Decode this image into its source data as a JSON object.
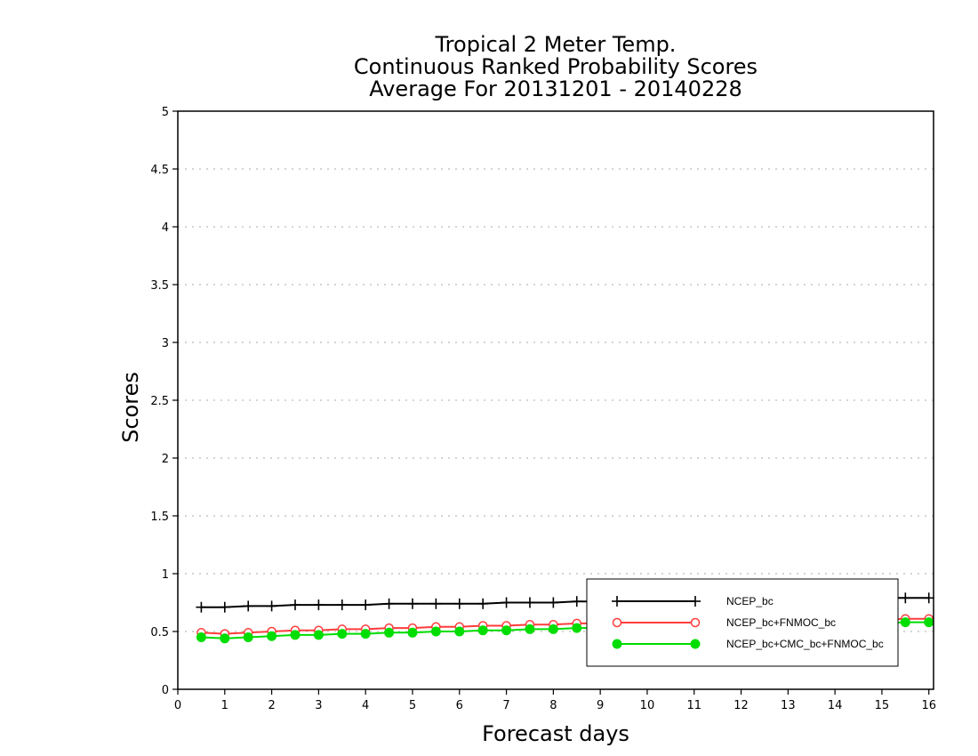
{
  "chart_data": {
    "type": "line",
    "title": [
      "Tropical 2 Meter Temp.",
      "Continuous Ranked Probability Scores",
      "Average For 20131201 - 20140228"
    ],
    "xlabel": "Forecast days",
    "ylabel": "Scores",
    "xlim": [
      0,
      16.1
    ],
    "ylim": [
      0,
      5
    ],
    "xticks": [
      0,
      1,
      2,
      3,
      4,
      5,
      6,
      7,
      8,
      9,
      10,
      11,
      12,
      13,
      14,
      15,
      16
    ],
    "yticks": [
      0,
      0.5,
      1,
      1.5,
      2,
      2.5,
      3,
      3.5,
      4,
      4.5,
      5
    ],
    "ytick_labels": [
      "0",
      "0.5",
      "1",
      "1.5",
      "2",
      "2.5",
      "3",
      "3.5",
      "4",
      "4.5",
      "5"
    ],
    "grid": "horizontal dotted",
    "legend_position": "bottom-right",
    "x": [
      0.5,
      1,
      1.5,
      2,
      2.5,
      3,
      3.5,
      4,
      4.5,
      5,
      5.5,
      6,
      6.5,
      7,
      7.5,
      8,
      8.5,
      9,
      9.5,
      10,
      10.5,
      11,
      11.5,
      12,
      12.5,
      13,
      13.5,
      14,
      14.5,
      15,
      15.5,
      16
    ],
    "series": [
      {
        "name": "NCEP_bc",
        "color": "#000000",
        "marker": "plus",
        "values": [
          0.71,
          0.71,
          0.72,
          0.72,
          0.73,
          0.73,
          0.73,
          0.73,
          0.74,
          0.74,
          0.74,
          0.74,
          0.74,
          0.75,
          0.75,
          0.75,
          0.76,
          0.76,
          0.76,
          0.76,
          0.77,
          0.77,
          0.77,
          0.77,
          0.78,
          0.78,
          0.78,
          0.78,
          0.79,
          0.79,
          0.79,
          0.79
        ]
      },
      {
        "name": "NCEP_bc+FNMOC_bc",
        "color": "#ff3b3b",
        "marker": "open-circle",
        "values": [
          0.49,
          0.48,
          0.49,
          0.5,
          0.51,
          0.51,
          0.52,
          0.52,
          0.53,
          0.53,
          0.54,
          0.54,
          0.55,
          0.55,
          0.56,
          0.56,
          0.57,
          0.57,
          0.57,
          0.58,
          0.58,
          0.58,
          0.59,
          0.59,
          0.59,
          0.59,
          0.6,
          0.6,
          0.6,
          0.6,
          0.61,
          0.61
        ]
      },
      {
        "name": "NCEP_bc+CMC_bc+FNMOC_bc",
        "color": "#00dd00",
        "marker": "filled-circle",
        "values": [
          0.45,
          0.44,
          0.45,
          0.46,
          0.47,
          0.47,
          0.48,
          0.48,
          0.49,
          0.49,
          0.5,
          0.5,
          0.51,
          0.51,
          0.52,
          0.52,
          0.53,
          0.53,
          0.53,
          0.54,
          0.54,
          0.54,
          0.55,
          0.55,
          0.55,
          0.56,
          0.56,
          0.56,
          0.57,
          0.57,
          0.58,
          0.58
        ]
      }
    ]
  }
}
